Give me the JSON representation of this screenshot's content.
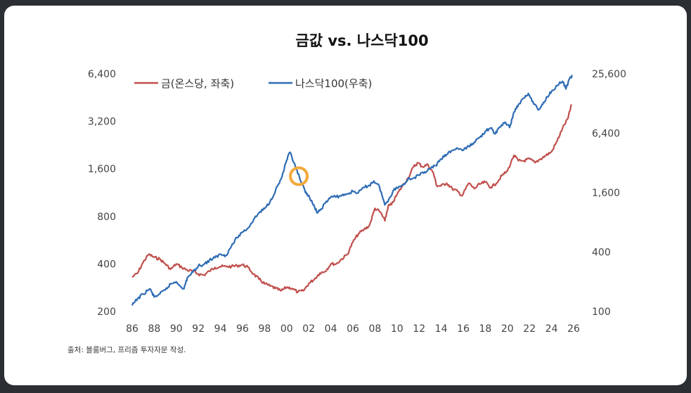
{
  "chart_data": {
    "type": "line",
    "title": "금값 vs. 나스닥100",
    "source": "출처: 블룸버그, 프리즘 투자자문 작성.",
    "x_ticks": [
      "86",
      "88",
      "90",
      "92",
      "94",
      "96",
      "98",
      "00",
      "02",
      "04",
      "06",
      "08",
      "10",
      "12",
      "14",
      "16",
      "18",
      "20",
      "22",
      "24",
      "26"
    ],
    "left_axis": {
      "scale": "log2",
      "ticks": [
        "200",
        "400",
        "800",
        "1,600",
        "3,200",
        "6,400"
      ],
      "ylim": [
        200,
        6400
      ]
    },
    "right_axis": {
      "scale": "log",
      "ticks": [
        "100",
        "400",
        "1,600",
        "6,400",
        "25,600"
      ],
      "ylim": [
        100,
        25600
      ]
    },
    "legend_position": "top-left",
    "series": [
      {
        "name": "금(온스당, 좌축)",
        "axis": "left",
        "color": "#c0504d",
        "points": [
          [
            1986.0,
            330
          ],
          [
            1986.5,
            350
          ],
          [
            1987.0,
            410
          ],
          [
            1987.5,
            460
          ],
          [
            1988.0,
            440
          ],
          [
            1988.5,
            430
          ],
          [
            1989.0,
            400
          ],
          [
            1989.5,
            370
          ],
          [
            1990.0,
            400
          ],
          [
            1990.5,
            380
          ],
          [
            1991.0,
            365
          ],
          [
            1991.5,
            360
          ],
          [
            1992.0,
            345
          ],
          [
            1992.5,
            340
          ],
          [
            1993.0,
            360
          ],
          [
            1993.5,
            380
          ],
          [
            1994.0,
            385
          ],
          [
            1994.5,
            385
          ],
          [
            1995.0,
            385
          ],
          [
            1995.5,
            390
          ],
          [
            1996.0,
            395
          ],
          [
            1996.5,
            380
          ],
          [
            1997.0,
            345
          ],
          [
            1997.5,
            320
          ],
          [
            1998.0,
            300
          ],
          [
            1998.5,
            290
          ],
          [
            1999.0,
            280
          ],
          [
            1999.5,
            270
          ],
          [
            2000.0,
            285
          ],
          [
            2000.5,
            280
          ],
          [
            2001.0,
            265
          ],
          [
            2001.5,
            270
          ],
          [
            2002.0,
            300
          ],
          [
            2002.5,
            320
          ],
          [
            2003.0,
            350
          ],
          [
            2003.5,
            360
          ],
          [
            2004.0,
            400
          ],
          [
            2004.5,
            400
          ],
          [
            2005.0,
            430
          ],
          [
            2005.5,
            460
          ],
          [
            2006.0,
            550
          ],
          [
            2006.5,
            620
          ],
          [
            2007.0,
            660
          ],
          [
            2007.5,
            700
          ],
          [
            2008.0,
            900
          ],
          [
            2008.5,
            850
          ],
          [
            2008.9,
            750
          ],
          [
            2009.2,
            930
          ],
          [
            2009.5,
            950
          ],
          [
            2010.0,
            1100
          ],
          [
            2010.5,
            1250
          ],
          [
            2011.0,
            1400
          ],
          [
            2011.5,
            1650
          ],
          [
            2011.9,
            1750
          ],
          [
            2012.3,
            1650
          ],
          [
            2012.8,
            1700
          ],
          [
            2013.3,
            1500
          ],
          [
            2013.6,
            1250
          ],
          [
            2014.0,
            1250
          ],
          [
            2014.5,
            1300
          ],
          [
            2015.0,
            1200
          ],
          [
            2015.5,
            1150
          ],
          [
            2015.9,
            1080
          ],
          [
            2016.5,
            1300
          ],
          [
            2017.0,
            1200
          ],
          [
            2017.5,
            1280
          ],
          [
            2018.0,
            1320
          ],
          [
            2018.5,
            1220
          ],
          [
            2019.0,
            1300
          ],
          [
            2019.5,
            1450
          ],
          [
            2020.0,
            1550
          ],
          [
            2020.6,
            1950
          ],
          [
            2021.0,
            1800
          ],
          [
            2021.5,
            1800
          ],
          [
            2022.0,
            1850
          ],
          [
            2022.5,
            1750
          ],
          [
            2023.0,
            1850
          ],
          [
            2023.5,
            1950
          ],
          [
            2024.0,
            2050
          ],
          [
            2024.5,
            2400
          ],
          [
            2025.0,
            2900
          ],
          [
            2025.5,
            3350
          ],
          [
            2025.8,
            4100
          ]
        ]
      },
      {
        "name": "나스닥100(우축)",
        "axis": "right",
        "color": "#2e6cb5",
        "points": [
          [
            1986.0,
            115
          ],
          [
            1986.5,
            135
          ],
          [
            1987.0,
            150
          ],
          [
            1987.6,
            170
          ],
          [
            1988.0,
            140
          ],
          [
            1988.5,
            150
          ],
          [
            1989.0,
            165
          ],
          [
            1989.5,
            190
          ],
          [
            1990.0,
            200
          ],
          [
            1990.7,
            170
          ],
          [
            1991.0,
            220
          ],
          [
            1991.5,
            250
          ],
          [
            1992.0,
            290
          ],
          [
            1992.5,
            300
          ],
          [
            1993.0,
            330
          ],
          [
            1993.5,
            350
          ],
          [
            1994.0,
            380
          ],
          [
            1994.5,
            370
          ],
          [
            1995.0,
            460
          ],
          [
            1995.5,
            560
          ],
          [
            1996.0,
            640
          ],
          [
            1996.5,
            700
          ],
          [
            1997.0,
            850
          ],
          [
            1997.5,
            1000
          ],
          [
            1998.0,
            1100
          ],
          [
            1998.5,
            1300
          ],
          [
            1999.0,
            1700
          ],
          [
            1999.5,
            2200
          ],
          [
            2000.0,
            3400
          ],
          [
            2000.3,
            4100
          ],
          [
            2000.8,
            2900
          ],
          [
            2001.2,
            2200
          ],
          [
            2001.7,
            1600
          ],
          [
            2002.0,
            1500
          ],
          [
            2002.4,
            1200
          ],
          [
            2002.8,
            1000
          ],
          [
            2003.0,
            1050
          ],
          [
            2003.5,
            1250
          ],
          [
            2004.0,
            1450
          ],
          [
            2004.5,
            1450
          ],
          [
            2005.0,
            1500
          ],
          [
            2005.5,
            1550
          ],
          [
            2006.0,
            1650
          ],
          [
            2006.5,
            1600
          ],
          [
            2007.0,
            1800
          ],
          [
            2007.5,
            1900
          ],
          [
            2007.9,
            2100
          ],
          [
            2008.4,
            1850
          ],
          [
            2008.9,
            1200
          ],
          [
            2009.3,
            1400
          ],
          [
            2009.7,
            1700
          ],
          [
            2010.0,
            1800
          ],
          [
            2010.5,
            1900
          ],
          [
            2011.0,
            2200
          ],
          [
            2011.5,
            2250
          ],
          [
            2012.0,
            2400
          ],
          [
            2012.5,
            2600
          ],
          [
            2013.0,
            2800
          ],
          [
            2013.5,
            3000
          ],
          [
            2014.0,
            3500
          ],
          [
            2014.5,
            3900
          ],
          [
            2015.0,
            4300
          ],
          [
            2015.5,
            4500
          ],
          [
            2016.0,
            4300
          ],
          [
            2016.5,
            4700
          ],
          [
            2017.0,
            5200
          ],
          [
            2017.5,
            5800
          ],
          [
            2018.0,
            6700
          ],
          [
            2018.5,
            7200
          ],
          [
            2018.9,
            6300
          ],
          [
            2019.3,
            7400
          ],
          [
            2019.8,
            8300
          ],
          [
            2020.2,
            7300
          ],
          [
            2020.6,
            10500
          ],
          [
            2021.0,
            12500
          ],
          [
            2021.5,
            14500
          ],
          [
            2021.9,
            16200
          ],
          [
            2022.3,
            13500
          ],
          [
            2022.8,
            11000
          ],
          [
            2023.2,
            12500
          ],
          [
            2023.6,
            15000
          ],
          [
            2024.0,
            17000
          ],
          [
            2024.5,
            19500
          ],
          [
            2025.0,
            21500
          ],
          [
            2025.3,
            18000
          ],
          [
            2025.6,
            22500
          ],
          [
            2025.9,
            24800
          ]
        ]
      }
    ],
    "annotation": {
      "type": "circle-marker",
      "color": "#f2a93b",
      "x": 2001.1,
      "y_right": 2350
    }
  }
}
